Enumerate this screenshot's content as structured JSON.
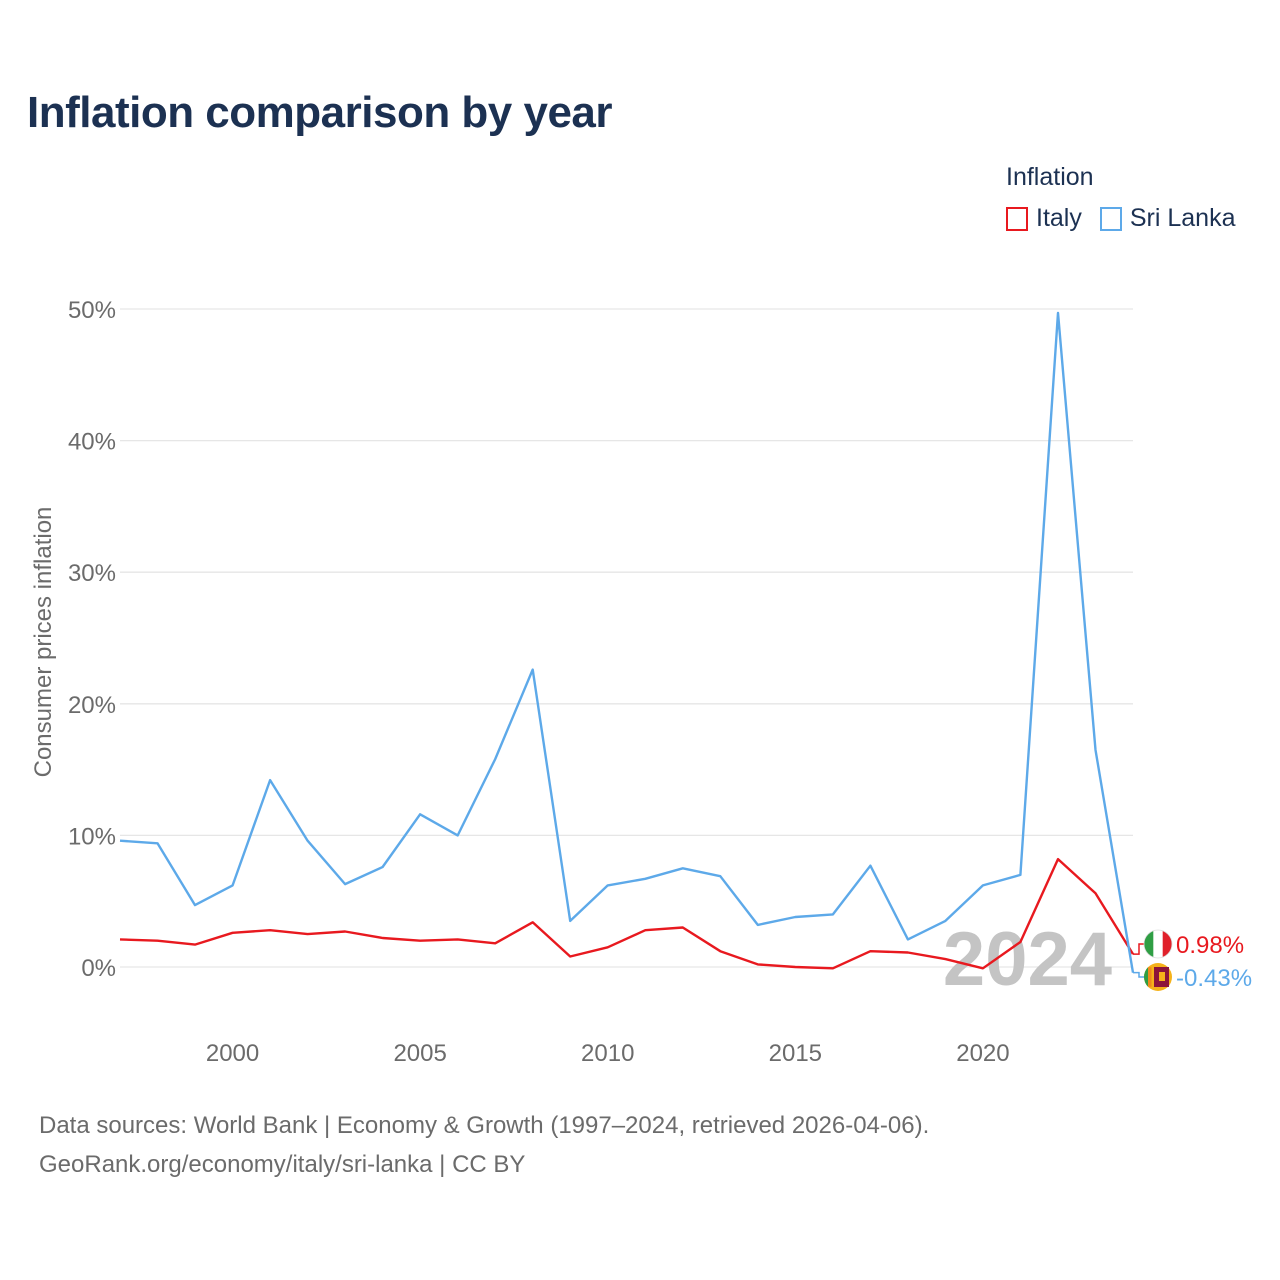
{
  "title": "Inflation comparison by year",
  "legend": {
    "title": "Inflation",
    "items": [
      {
        "label": "Italy",
        "color": "#e8191f"
      },
      {
        "label": "Sri Lanka",
        "color": "#5da9e9"
      }
    ]
  },
  "footer": {
    "line1": "Data sources: World Bank | Economy & Growth (1997–2024, retrieved 2026-04-06).",
    "line2": "GeoRank.org/economy/italy/sri-lanka | CC BY"
  },
  "chart_data": {
    "type": "line",
    "title": "Inflation comparison by year",
    "xlabel": "",
    "ylabel": "Consumer prices inflation",
    "xlim": [
      1997,
      2024
    ],
    "ylim": [
      -5,
      50
    ],
    "yticks": [
      0,
      10,
      20,
      30,
      40,
      50
    ],
    "ytick_labels": [
      "0%",
      "10%",
      "20%",
      "30%",
      "40%",
      "50%"
    ],
    "xticks": [
      2000,
      2005,
      2010,
      2015,
      2020
    ],
    "xtick_labels": [
      "2000",
      "2005",
      "2010",
      "2015",
      "2020"
    ],
    "grid": true,
    "year_watermark": "2024",
    "x": [
      1997,
      1998,
      1999,
      2000,
      2001,
      2002,
      2003,
      2004,
      2005,
      2006,
      2007,
      2008,
      2009,
      2010,
      2011,
      2012,
      2013,
      2014,
      2015,
      2016,
      2017,
      2018,
      2019,
      2020,
      2021,
      2022,
      2023,
      2024
    ],
    "series": [
      {
        "name": "Italy",
        "color": "#e8191f",
        "values": [
          2.1,
          2.0,
          1.7,
          2.6,
          2.8,
          2.5,
          2.7,
          2.2,
          2.0,
          2.1,
          1.8,
          3.4,
          0.8,
          1.5,
          2.8,
          3.0,
          1.2,
          0.2,
          0.0,
          -0.1,
          1.2,
          1.1,
          0.6,
          -0.1,
          1.9,
          8.2,
          5.6,
          0.98
        ],
        "end_label": "0.98%",
        "flag_icon": "italy-flag-icon"
      },
      {
        "name": "Sri Lanka",
        "color": "#5da9e9",
        "values": [
          9.6,
          9.4,
          4.7,
          6.2,
          14.2,
          9.6,
          6.3,
          7.6,
          11.6,
          10.0,
          15.8,
          22.6,
          3.5,
          6.2,
          6.7,
          7.5,
          6.9,
          3.2,
          3.8,
          4.0,
          7.7,
          2.1,
          3.5,
          6.2,
          7.0,
          49.7,
          16.5,
          -0.43
        ],
        "end_label": "-0.43%",
        "flag_icon": "sri-lanka-flag-icon"
      }
    ]
  }
}
